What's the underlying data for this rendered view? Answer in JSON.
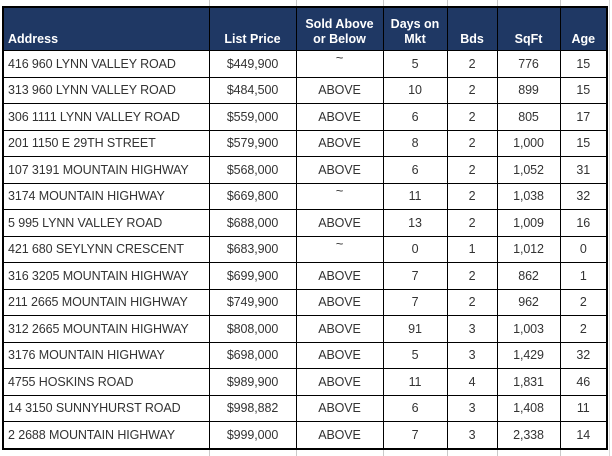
{
  "chart_data": {
    "type": "table",
    "columns": [
      "Address",
      "List Price",
      "Sold Above or Below",
      "Days on Mkt",
      "Bds",
      "SqFt",
      "Age"
    ],
    "rows": [
      [
        "416 960 LYNN VALLEY ROAD",
        "$449,900",
        "~",
        "5",
        "2",
        "776",
        "15"
      ],
      [
        "313 960 LYNN VALLEY ROAD",
        "$484,500",
        "ABOVE",
        "10",
        "2",
        "899",
        "15"
      ],
      [
        "306 1111 LYNN VALLEY ROAD",
        "$559,000",
        "ABOVE",
        "6",
        "2",
        "805",
        "17"
      ],
      [
        "201 1150 E 29TH STREET",
        "$579,900",
        "ABOVE",
        "8",
        "2",
        "1,000",
        "15"
      ],
      [
        "107 3191 MOUNTAIN HIGHWAY",
        "$568,000",
        "ABOVE",
        "6",
        "2",
        "1,052",
        "31"
      ],
      [
        "3174 MOUNTAIN HIGHWAY",
        "$669,800",
        "~",
        "11",
        "2",
        "1,038",
        "32"
      ],
      [
        "5 995 LYNN VALLEY ROAD",
        "$688,000",
        "ABOVE",
        "13",
        "2",
        "1,009",
        "16"
      ],
      [
        "421 680 SEYLYNN CRESCENT",
        "$683,900",
        "~",
        "0",
        "1",
        "1,012",
        "0"
      ],
      [
        "316 3205 MOUNTAIN HIGHWAY",
        "$699,900",
        "ABOVE",
        "7",
        "2",
        "862",
        "1"
      ],
      [
        "211 2665 MOUNTAIN HIGHWAY",
        "$749,900",
        "ABOVE",
        "7",
        "2",
        "962",
        "2"
      ],
      [
        "312 2665 MOUNTAIN HIGHWAY",
        "$808,000",
        "ABOVE",
        "91",
        "3",
        "1,003",
        "2"
      ],
      [
        "3176 MOUNTAIN HIGHWAY",
        "$698,000",
        "ABOVE",
        "5",
        "3",
        "1,429",
        "32"
      ],
      [
        "4755 HOSKINS ROAD",
        "$989,900",
        "ABOVE",
        "11",
        "4",
        "1,831",
        "46"
      ],
      [
        "14 3150 SUNNYHURST ROAD",
        "$998,882",
        "ABOVE",
        "6",
        "3",
        "1,408",
        "11"
      ],
      [
        "2 2688 MOUNTAIN HIGHWAY",
        "$999,000",
        "ABOVE",
        "7",
        "3",
        "2,338",
        "14"
      ]
    ]
  },
  "table": {
    "header_labels": [
      "Address",
      "List Price",
      "Sold Above\nor Below",
      "Days on\nMkt",
      "Bds",
      "SqFt",
      "Age"
    ]
  },
  "colors": {
    "header_bg": "#1F3864",
    "header_text": "#FFFFFF",
    "grid_border": "#000000",
    "cell_text": "#333333",
    "row_bg": "#FFFFFF"
  }
}
